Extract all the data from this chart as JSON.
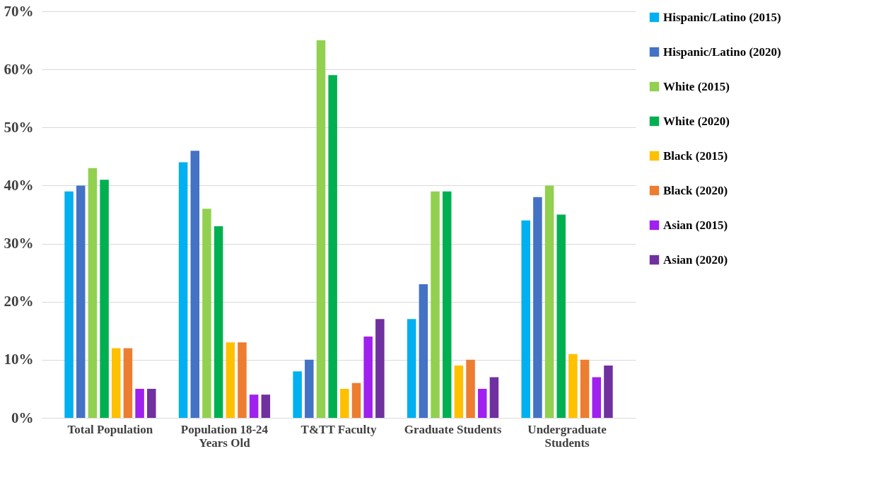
{
  "chart_data": {
    "type": "bar",
    "categories": [
      "Total Population",
      "Population 18-24 Years Old",
      "T&TT Faculty",
      "Graduate Students",
      "Undergraduate Students"
    ],
    "series": [
      {
        "name": "Hispanic/Latino (2015)",
        "color": "#00b0f0",
        "values": [
          39,
          44,
          8,
          17,
          34
        ]
      },
      {
        "name": "Hispanic/Latino (2020)",
        "color": "#4472c4",
        "values": [
          40,
          46,
          10,
          23,
          38
        ]
      },
      {
        "name": "White (2015)",
        "color": "#92d050",
        "values": [
          43,
          36,
          65,
          39,
          40
        ]
      },
      {
        "name": "White (2020)",
        "color": "#00b050",
        "values": [
          41,
          33,
          59,
          39,
          35
        ]
      },
      {
        "name": "Black (2015)",
        "color": "#ffc000",
        "values": [
          12,
          13,
          5,
          9,
          11
        ]
      },
      {
        "name": "Black (2020)",
        "color": "#ed7d31",
        "values": [
          12,
          13,
          6,
          10,
          10
        ]
      },
      {
        "name": "Asian (2015)",
        "color": "#a020f0",
        "values": [
          5,
          4,
          14,
          5,
          7
        ]
      },
      {
        "name": "Asian (2020)",
        "color": "#7030a0",
        "values": [
          5,
          4,
          17,
          7,
          9
        ]
      }
    ],
    "ylim": [
      0,
      70
    ],
    "yticks": [
      {
        "value": 0,
        "label": "0%"
      },
      {
        "value": 10,
        "label": "10%"
      },
      {
        "value": 20,
        "label": "20%"
      },
      {
        "value": 30,
        "label": "30%"
      },
      {
        "value": 40,
        "label": "40%"
      },
      {
        "value": 50,
        "label": "50%"
      },
      {
        "value": 60,
        "label": "60%"
      },
      {
        "value": 70,
        "label": "70%"
      }
    ],
    "grid": "y",
    "legend": "right"
  }
}
